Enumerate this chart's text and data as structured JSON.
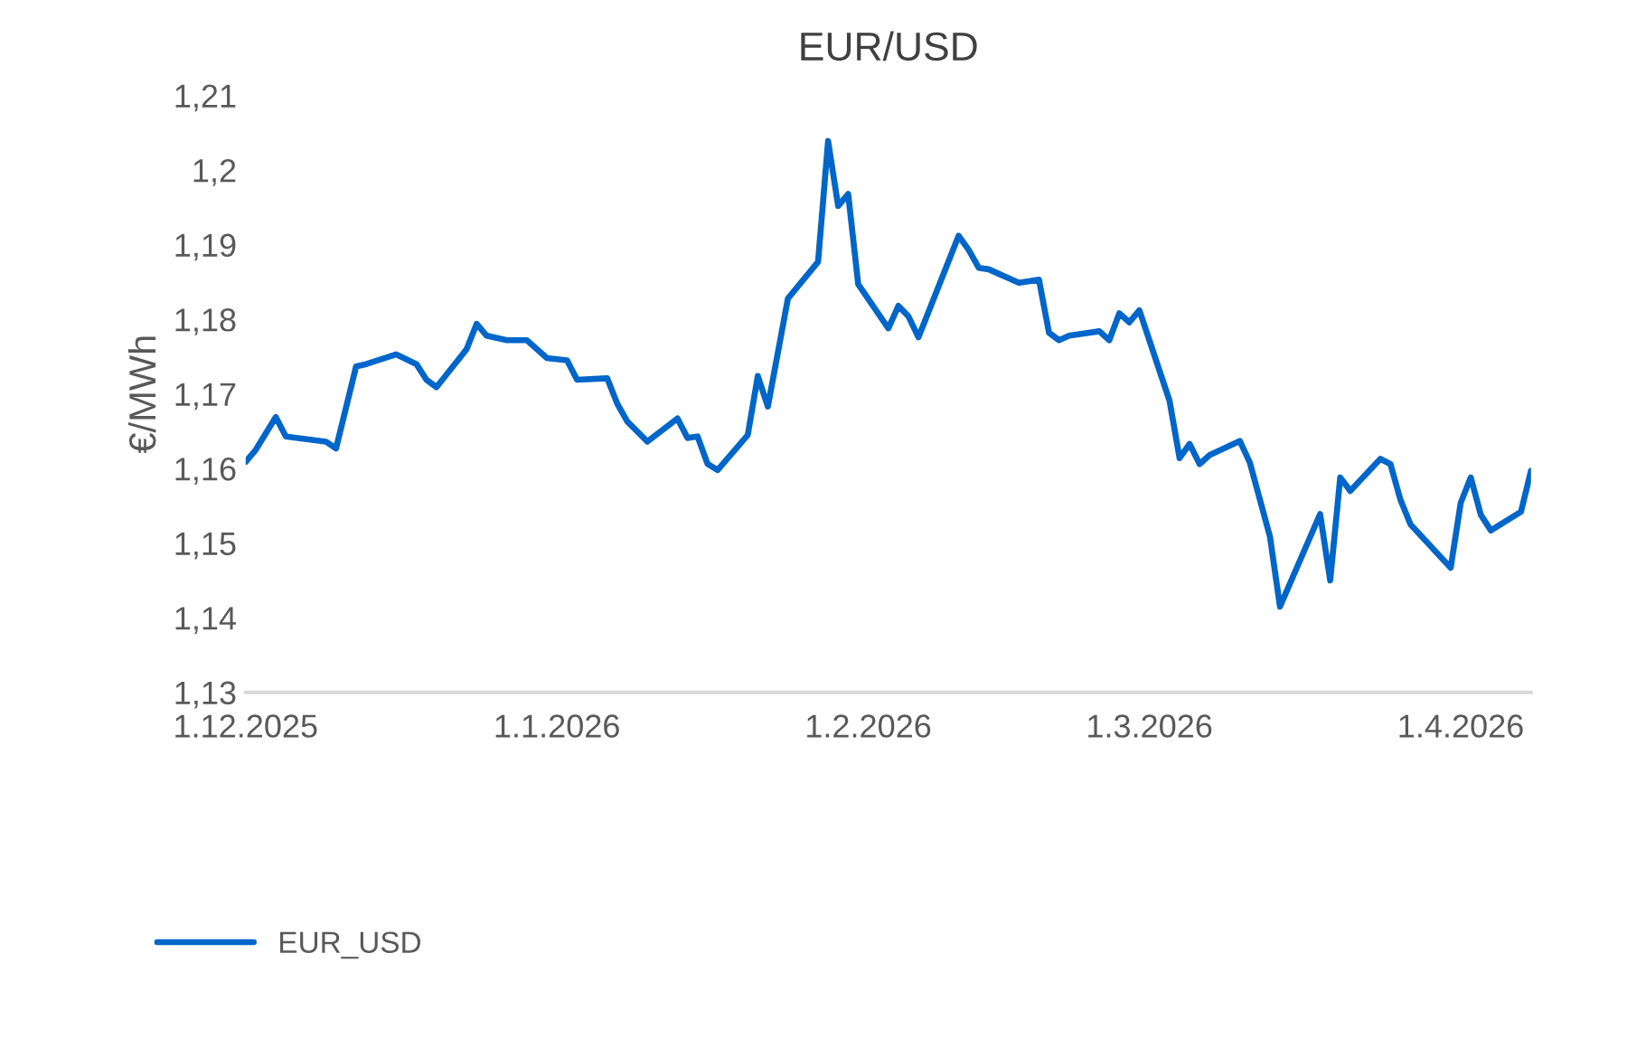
{
  "chart_data": {
    "type": "line",
    "title": "EUR/USD",
    "ylabel": "€/MWh",
    "x": [
      "2025-12-01",
      "2025-12-02",
      "2025-12-04",
      "2025-12-05",
      "2025-12-09",
      "2025-12-10",
      "2025-12-12",
      "2025-12-13",
      "2025-12-16",
      "2025-12-18",
      "2025-12-19",
      "2025-12-20",
      "2025-12-23",
      "2025-12-24",
      "2025-12-25",
      "2025-12-27",
      "2025-12-29",
      "2025-12-31",
      "2026-01-02",
      "2026-01-03",
      "2026-01-06",
      "2026-01-07",
      "2026-01-08",
      "2026-01-10",
      "2026-01-13",
      "2026-01-14",
      "2026-01-15",
      "2026-01-16",
      "2026-01-17",
      "2026-01-20",
      "2026-01-21",
      "2026-01-22",
      "2026-01-24",
      "2026-01-27",
      "2026-01-28",
      "2026-01-29",
      "2026-01-30",
      "2026-01-31",
      "2026-02-03",
      "2026-02-04",
      "2026-02-05",
      "2026-02-06",
      "2026-02-10",
      "2026-02-11",
      "2026-02-12",
      "2026-02-13",
      "2026-02-16",
      "2026-02-18",
      "2026-02-19",
      "2026-02-20",
      "2026-02-21",
      "2026-02-24",
      "2026-02-25",
      "2026-02-26",
      "2026-02-27",
      "2026-02-28",
      "2026-03-03",
      "2026-03-04",
      "2026-03-05",
      "2026-03-06",
      "2026-03-07",
      "2026-03-10",
      "2026-03-11",
      "2026-03-13",
      "2026-03-14",
      "2026-03-18",
      "2026-03-19",
      "2026-03-20",
      "2026-03-21",
      "2026-03-24",
      "2026-03-25",
      "2026-03-26",
      "2026-03-27",
      "2026-03-31",
      "2026-04-01",
      "2026-04-02",
      "2026-04-03",
      "2026-04-04",
      "2026-04-07",
      "2026-04-08"
    ],
    "series": [
      {
        "name": "EUR_USD",
        "color": "#0066cc",
        "values": [
          1.1609,
          1.1625,
          1.1669,
          1.1643,
          1.1636,
          1.1627,
          1.1737,
          1.174,
          1.1753,
          1.174,
          1.1719,
          1.1709,
          1.176,
          1.1794,
          1.1778,
          1.1772,
          1.1772,
          1.1748,
          1.1745,
          1.1719,
          1.1721,
          1.1687,
          1.1663,
          1.1636,
          1.1667,
          1.1641,
          1.1643,
          1.1606,
          1.1598,
          1.1645,
          1.1724,
          1.1683,
          1.1828,
          1.1877,
          1.2039,
          1.1952,
          1.1968,
          1.1847,
          1.1788,
          1.1818,
          1.1804,
          1.1776,
          1.1912,
          1.1893,
          1.1869,
          1.1867,
          1.1849,
          1.1853,
          1.1782,
          1.1772,
          1.1778,
          1.1784,
          1.1772,
          1.1808,
          1.1796,
          1.1812,
          1.1691,
          1.1614,
          1.1633,
          1.1606,
          1.1618,
          1.1637,
          1.1608,
          1.1509,
          1.1415,
          1.1539,
          1.145,
          1.1588,
          1.157,
          1.1613,
          1.1606,
          1.1558,
          1.1525,
          1.1467,
          1.1554,
          1.1588,
          1.1538,
          1.1517,
          1.1542,
          1.1597
        ]
      }
    ],
    "xlim": [
      "2025-12-01",
      "2026-04-08"
    ],
    "xticks": [
      {
        "value": "2025-12-01",
        "label": "1.12.2025"
      },
      {
        "value": "2026-01-01",
        "label": "1.1.2026"
      },
      {
        "value": "2026-02-01",
        "label": "1.2.2026"
      },
      {
        "value": "2026-03-01",
        "label": "1.3.2026"
      },
      {
        "value": "2026-04-01",
        "label": "1.4.2026"
      }
    ],
    "ylim": [
      1.13,
      1.21
    ],
    "yticks": [
      {
        "value": 1.13,
        "label": "1,13"
      },
      {
        "value": 1.14,
        "label": "1,14"
      },
      {
        "value": 1.15,
        "label": "1,15"
      },
      {
        "value": 1.16,
        "label": "1,16"
      },
      {
        "value": 1.17,
        "label": "1,17"
      },
      {
        "value": 1.18,
        "label": "1,18"
      },
      {
        "value": 1.19,
        "label": "1,19"
      },
      {
        "value": 1.2,
        "label": "1,2"
      },
      {
        "value": 1.21,
        "label": "1,21"
      }
    ],
    "grid": false,
    "legend": "bottom left",
    "marker": "none",
    "line_style": "solid"
  }
}
